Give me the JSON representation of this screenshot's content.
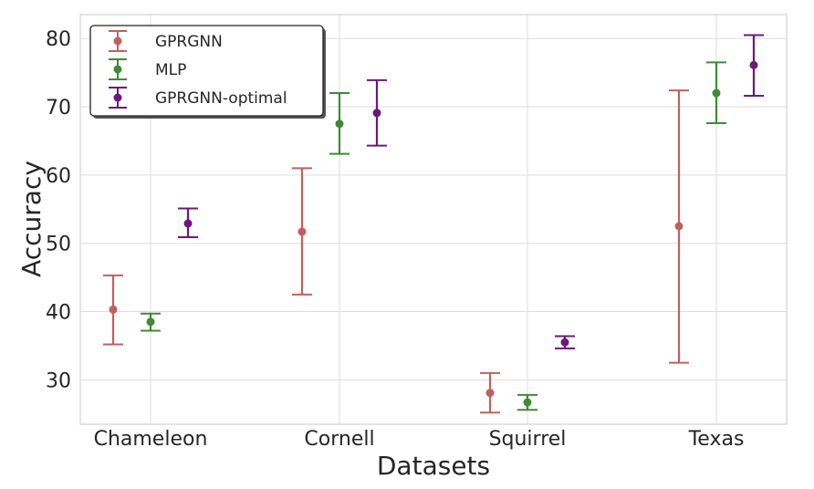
{
  "chart_data": {
    "type": "scatter",
    "xlabel": "Datasets",
    "ylabel": "Accuracy",
    "categories": [
      "Chameleon",
      "Cornell",
      "Squirrel",
      "Texas"
    ],
    "ylim": [
      23.5,
      83.5
    ],
    "yticks": [
      30,
      40,
      50,
      60,
      70,
      80
    ],
    "grid": true,
    "legend_position": "top-left",
    "series": [
      {
        "name": "GPRGNN",
        "color": "#c0605e",
        "values": [
          40.3,
          51.7,
          28.1,
          52.5
        ],
        "err_low": [
          35.2,
          42.5,
          25.2,
          32.5
        ],
        "err_high": [
          45.3,
          61.0,
          31.0,
          72.4
        ]
      },
      {
        "name": "MLP",
        "color": "#3e8a35",
        "values": [
          38.5,
          67.5,
          26.7,
          72.0
        ],
        "err_low": [
          37.2,
          63.1,
          25.6,
          67.6
        ],
        "err_high": [
          39.7,
          72.0,
          27.8,
          76.5
        ]
      },
      {
        "name": "GPRGNN-optimal",
        "color": "#6a1a7a",
        "values": [
          52.9,
          69.1,
          35.5,
          76.1
        ],
        "err_low": [
          50.9,
          64.3,
          34.6,
          71.6
        ],
        "err_high": [
          55.1,
          73.9,
          36.4,
          80.5
        ]
      }
    ]
  }
}
